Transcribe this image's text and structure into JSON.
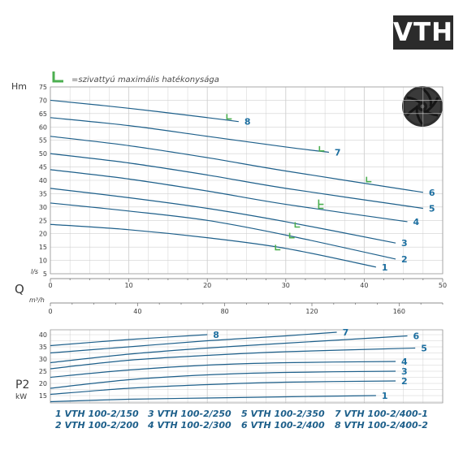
{
  "brand": {
    "logo_text": "VTH"
  },
  "legend_note": "=szivattyú maximális hatékonysága",
  "colors": {
    "curve": "#1d5f8a",
    "label": "#1d6fa0",
    "efficiency_marker": "#4caf50",
    "grid": "#bdbdbd",
    "axis_text": "#3a3a3a"
  },
  "icons": {
    "legend_marker": "green-corner-bracket",
    "impeller": "pump-impeller-icon"
  },
  "labels": {
    "head_axis": "Hm",
    "flow_symbol": "Q",
    "power_symbol": "P2",
    "power_unit": "kW",
    "flow_unit_ls": "l/s",
    "flow_unit_m3h": "m³/h"
  },
  "models": [
    {
      "num": "1",
      "name": "VTH 100-2/150"
    },
    {
      "num": "2",
      "name": "VTH 100-2/200"
    },
    {
      "num": "3",
      "name": "VTH 100-2/250"
    },
    {
      "num": "4",
      "name": "VTH 100-2/300"
    },
    {
      "num": "5",
      "name": "VTH 100-2/350"
    },
    {
      "num": "6",
      "name": "VTH 100-2/400"
    },
    {
      "num": "7",
      "name": "VTH 100-2/400-1"
    },
    {
      "num": "8",
      "name": "VTH 100-2/400-2"
    }
  ],
  "chart_data": [
    {
      "type": "line",
      "xlabel": "l/s",
      "ylabel": "Hm",
      "xlim": [
        0,
        50
      ],
      "ylim": [
        5,
        75
      ],
      "x_ticks": [
        0,
        10,
        20,
        30,
        40,
        50
      ],
      "y_ticks": [
        5,
        10,
        15,
        20,
        25,
        30,
        35,
        40,
        45,
        50,
        55,
        60,
        65,
        70,
        75
      ],
      "secondary_x": {
        "label": "m³/h",
        "ticks": [
          0,
          40,
          80,
          120,
          160
        ]
      },
      "grid": true,
      "series": [
        {
          "name": "1",
          "x": [
            0,
            10,
            20,
            30,
            41.5
          ],
          "y": [
            23.5,
            21.5,
            18.5,
            14.5,
            7.5
          ],
          "bep": [
            28.7,
            14
          ]
        },
        {
          "name": "2",
          "x": [
            0,
            10,
            20,
            30,
            44
          ],
          "y": [
            31.5,
            28.5,
            25,
            19.5,
            10.5
          ],
          "bep": [
            30.5,
            18.5
          ]
        },
        {
          "name": "3",
          "x": [
            0,
            10,
            20,
            30,
            44
          ],
          "y": [
            37,
            33.5,
            29.5,
            24.5,
            16.5
          ],
          "bep": [
            31.2,
            22.5
          ]
        },
        {
          "name": "4",
          "x": [
            0,
            10,
            20,
            30,
            45.5
          ],
          "y": [
            44,
            40.5,
            36,
            31,
            24.5
          ],
          "bep": [
            34.2,
            29.5
          ]
        },
        {
          "name": "5",
          "x": [
            0,
            10,
            20,
            30,
            47.5
          ],
          "y": [
            50,
            46.5,
            42,
            37,
            29.5
          ],
          "bep": [
            34.2,
            31
          ]
        },
        {
          "name": "6",
          "x": [
            0,
            10,
            20,
            30,
            47.5
          ],
          "y": [
            56.5,
            53,
            48.5,
            43.5,
            35.5
          ],
          "bep": [
            40.3,
            39.5
          ]
        },
        {
          "name": "7",
          "x": [
            0,
            10,
            20,
            30,
            35.5
          ],
          "y": [
            63.5,
            60.5,
            56.5,
            52.5,
            50.5
          ],
          "bep": [
            34.3,
            51
          ]
        },
        {
          "name": "8",
          "x": [
            0,
            10,
            20,
            24
          ],
          "y": [
            70,
            67,
            63.5,
            62
          ],
          "bep": [
            22.5,
            63
          ]
        }
      ]
    },
    {
      "type": "line",
      "xlabel": "",
      "ylabel": "P2 kW",
      "xlim": [
        0,
        50
      ],
      "ylim": [
        12,
        42
      ],
      "y_ticks": [
        15,
        20,
        25,
        30,
        35,
        40
      ],
      "grid": true,
      "series": [
        {
          "name": "1",
          "x": [
            0,
            10,
            20,
            30,
            41.5
          ],
          "y": [
            12.5,
            13.5,
            14,
            14.5,
            15
          ]
        },
        {
          "name": "2",
          "x": [
            0,
            10,
            20,
            30,
            44
          ],
          "y": [
            15.5,
            18,
            19.5,
            20.5,
            21
          ]
        },
        {
          "name": "3",
          "x": [
            0,
            10,
            20,
            30,
            44
          ],
          "y": [
            18,
            21.5,
            23.5,
            24.5,
            25
          ]
        },
        {
          "name": "4",
          "x": [
            0,
            10,
            20,
            30,
            44
          ],
          "y": [
            22.5,
            25.5,
            27.5,
            28.5,
            29
          ]
        },
        {
          "name": "5",
          "x": [
            0,
            10,
            20,
            30,
            46.5
          ],
          "y": [
            26,
            29.5,
            31.5,
            33,
            34.5
          ]
        },
        {
          "name": "6",
          "x": [
            0,
            10,
            20,
            30,
            45.5
          ],
          "y": [
            28.5,
            32,
            34.5,
            36.5,
            39.5
          ]
        },
        {
          "name": "7",
          "x": [
            0,
            10,
            20,
            30,
            36.5
          ],
          "y": [
            32.5,
            35,
            37.5,
            39.5,
            41
          ]
        },
        {
          "name": "8",
          "x": [
            0,
            10,
            20
          ],
          "y": [
            35.5,
            38,
            40
          ]
        }
      ]
    }
  ]
}
